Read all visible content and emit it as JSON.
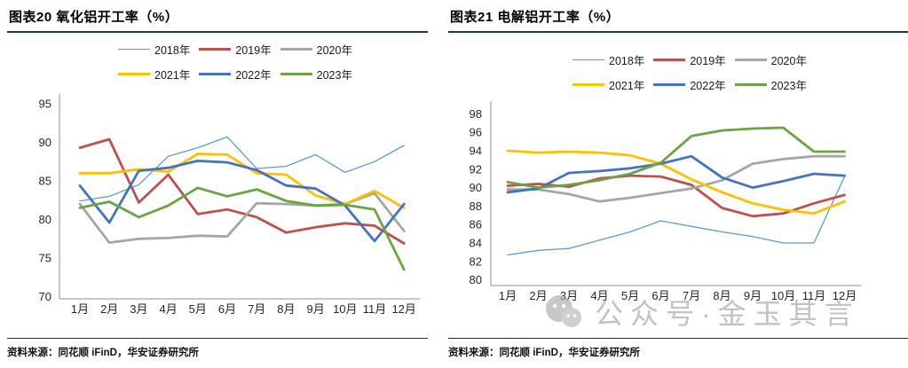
{
  "watermark": {
    "text": "公众号·金玉其言",
    "icon": "wechat-icon"
  },
  "chart_data": [
    {
      "type": "line",
      "title": "图表20 氧化铝开工率（%）",
      "source": "资料来源：同花顺 iFinD，华安证券研究所",
      "categories": [
        "1月",
        "2月",
        "3月",
        "4月",
        "5月",
        "6月",
        "7月",
        "8月",
        "9月",
        "10月",
        "11月",
        "12月"
      ],
      "ylim": [
        70,
        95
      ],
      "yticks": [
        70,
        75,
        80,
        85,
        90,
        95
      ],
      "grid": false,
      "legend_position": "top",
      "legend_rows": [
        [
          "2018年",
          "2019年",
          "2020年"
        ],
        [
          "2021年",
          "2022年",
          "2023年"
        ]
      ],
      "series": [
        {
          "name": "2018年",
          "color": "#5b9bd5",
          "width": 1.3,
          "values": [
            82.4,
            83.0,
            84.5,
            88.2,
            89.3,
            90.7,
            86.6,
            86.9,
            88.4,
            86.1,
            87.5,
            89.6
          ]
        },
        {
          "name": "2019年",
          "color": "#c0504d",
          "width": 2.8,
          "values": [
            89.3,
            90.4,
            82.2,
            85.8,
            80.7,
            81.3,
            80.3,
            78.3,
            79.0,
            79.5,
            79.2,
            76.9
          ]
        },
        {
          "name": "2020年",
          "color": "#a6a6a6",
          "width": 2.8,
          "values": [
            82.0,
            77.0,
            77.5,
            77.6,
            77.9,
            77.8,
            82.1,
            82.0,
            81.8,
            82.0,
            83.4,
            78.5
          ]
        },
        {
          "name": "2021年",
          "color": "#fec000",
          "width": 2.8,
          "values": [
            86.0,
            86.0,
            86.5,
            86.2,
            88.5,
            88.4,
            86.0,
            85.8,
            83.1,
            82.0,
            83.7,
            81.5
          ]
        },
        {
          "name": "2022年",
          "color": "#4472c4",
          "width": 2.8,
          "values": [
            84.4,
            79.6,
            86.3,
            86.7,
            87.6,
            87.4,
            86.4,
            84.4,
            84.0,
            81.8,
            77.2,
            82.0
          ]
        },
        {
          "name": "2023年",
          "color": "#6ca344",
          "width": 2.8,
          "values": [
            81.5,
            82.3,
            80.3,
            81.8,
            84.1,
            83.0,
            83.9,
            82.4,
            81.8,
            81.9,
            81.3,
            73.5
          ]
        }
      ]
    },
    {
      "type": "line",
      "title": "图表21 电解铝开工率（%）",
      "source": "资料来源：同花顺 iFinD，华安证券研究所",
      "categories": [
        "1月",
        "2月",
        "3月",
        "4月",
        "5月",
        "6月",
        "7月",
        "8月",
        "9月",
        "10月",
        "11月",
        "12月"
      ],
      "ylim": [
        80,
        98
      ],
      "yticks": [
        80,
        82,
        84,
        86,
        88,
        90,
        92,
        94,
        96,
        98
      ],
      "grid": false,
      "legend_position": "top",
      "legend_rows": [
        [
          "2018年",
          "2019年",
          "2020年"
        ],
        [
          "2021年",
          "2022年",
          "2023年"
        ]
      ],
      "series": [
        {
          "name": "2018年",
          "color": "#5b9bd5",
          "width": 1.3,
          "values": [
            82.7,
            83.2,
            83.4,
            84.3,
            85.2,
            86.4,
            85.8,
            85.2,
            84.7,
            84.0,
            84.0,
            91.2
          ]
        },
        {
          "name": "2019年",
          "color": "#c0504d",
          "width": 2.8,
          "values": [
            90.2,
            90.4,
            90.1,
            91.0,
            91.3,
            91.2,
            90.3,
            87.8,
            86.9,
            87.2,
            88.3,
            89.2
          ]
        },
        {
          "name": "2020年",
          "color": "#a6a6a6",
          "width": 2.8,
          "values": [
            89.8,
            89.8,
            89.3,
            88.5,
            88.9,
            89.4,
            89.9,
            90.8,
            92.6,
            93.1,
            93.4,
            93.4
          ]
        },
        {
          "name": "2021年",
          "color": "#fec000",
          "width": 2.8,
          "values": [
            94.0,
            93.8,
            93.9,
            93.8,
            93.5,
            92.6,
            90.9,
            89.5,
            88.3,
            87.6,
            87.2,
            88.5
          ]
        },
        {
          "name": "2022年",
          "color": "#4472c4",
          "width": 2.8,
          "values": [
            89.5,
            89.9,
            91.6,
            91.8,
            92.1,
            92.6,
            93.4,
            91.1,
            90.0,
            90.7,
            91.5,
            91.3
          ]
        },
        {
          "name": "2023年",
          "color": "#6ca344",
          "width": 2.8,
          "values": [
            90.6,
            90.0,
            90.3,
            90.8,
            91.5,
            92.7,
            95.6,
            96.2,
            96.4,
            96.5,
            93.9,
            93.9
          ]
        }
      ]
    }
  ]
}
